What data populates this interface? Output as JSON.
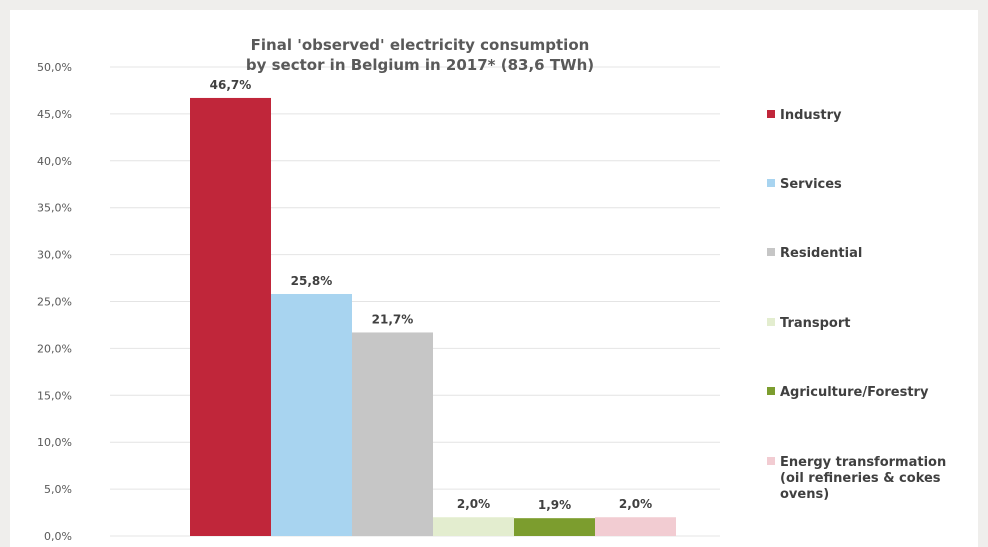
{
  "chart_data": {
    "type": "bar",
    "title": [
      "Final 'observed' electricity consumption",
      "by sector in Belgium in 2017* (83,6 TWh)"
    ],
    "xlabel": "",
    "ylabel": "",
    "ylim": [
      0,
      50
    ],
    "yticks": [
      0,
      5,
      10,
      15,
      20,
      25,
      30,
      35,
      40,
      45,
      50
    ],
    "ytick_labels": [
      "0,0%",
      "5,0%",
      "10,0%",
      "15,0%",
      "20,0%",
      "25,0%",
      "30,0%",
      "35,0%",
      "40,0%",
      "45,0%",
      "50,0%"
    ],
    "grid": true,
    "legend_position": "right",
    "categories": [
      "Industry",
      "Services",
      "Residential",
      "Transport",
      "Agriculture/Forestry",
      "Energy transformation (oil refineries & cokes ovens)"
    ],
    "values": [
      46.7,
      25.8,
      21.7,
      2.0,
      1.9,
      2.0
    ],
    "data_labels": [
      "46,7%",
      "25,8%",
      "21,7%",
      "2,0%",
      "1,9%",
      "2,0%"
    ],
    "colors": [
      "#c0263a",
      "#a8d4f0",
      "#c6c6c6",
      "#e3edcf",
      "#7c9d2e",
      "#f2ccd2"
    ],
    "legend": [
      {
        "lines": [
          "Industry"
        ],
        "color": "#c0263a"
      },
      {
        "lines": [
          "Services"
        ],
        "color": "#a8d4f0"
      },
      {
        "lines": [
          "Residential"
        ],
        "color": "#c6c6c6"
      },
      {
        "lines": [
          "Transport"
        ],
        "color": "#e3edcf"
      },
      {
        "lines": [
          "Agriculture/Forestry"
        ],
        "color": "#7c9d2e"
      },
      {
        "lines": [
          "Energy transformation",
          "(oil refineries & cokes",
          "ovens)"
        ],
        "color": "#f2ccd2"
      }
    ]
  }
}
